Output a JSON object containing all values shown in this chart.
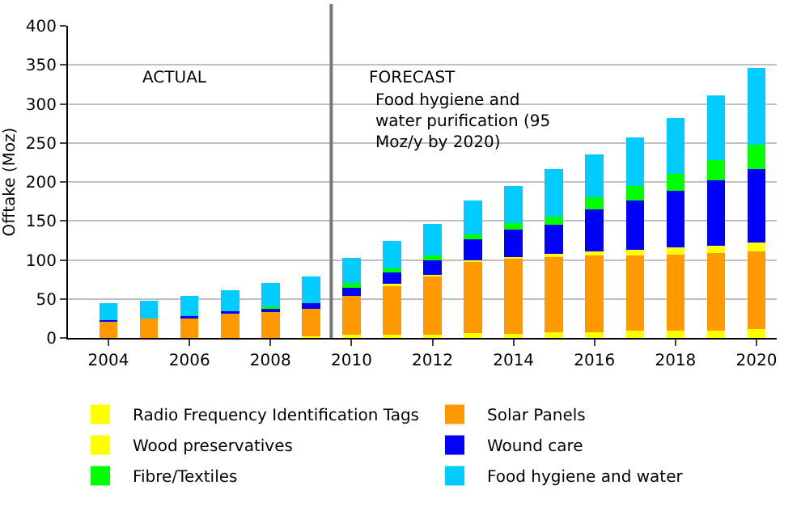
{
  "chart_data": {
    "type": "bar",
    "stacked": true,
    "ylabel": "Offtake (Moz)",
    "x": [
      2004,
      2005,
      2006,
      2007,
      2008,
      2009,
      2010,
      2011,
      2012,
      2013,
      2014,
      2015,
      2016,
      2017,
      2018,
      2019,
      2020
    ],
    "xlim": [
      2003,
      2020.5
    ],
    "xticks": [
      2004,
      2006,
      2008,
      2010,
      2012,
      2014,
      2016,
      2018,
      2020
    ],
    "ylim": [
      0,
      400
    ],
    "yticks": [
      0,
      50,
      100,
      150,
      200,
      250,
      300,
      350,
      400
    ],
    "grid": "y",
    "legend": "bottom",
    "series": [
      {
        "name": "Radio Frequency Identification Tags",
        "color": "#ffff00",
        "values": [
          0,
          0,
          0,
          0,
          0,
          2,
          4,
          4,
          4,
          6,
          5.5,
          7,
          7,
          9,
          9,
          9,
          11
        ]
      },
      {
        "name": "Solar Panels",
        "color": "#ff9900",
        "values": [
          21,
          25,
          26,
          32,
          33,
          35,
          50,
          64,
          76,
          93,
          97,
          98.5,
          98.5,
          96.5,
          98,
          100,
          100
        ]
      },
      {
        "name": "Wood preservatives",
        "color": "#ffff00",
        "values": [
          0,
          0,
          0,
          0,
          0,
          0,
          0,
          1,
          1,
          1,
          1.5,
          2,
          5.5,
          7.5,
          9.5,
          9.5,
          11
        ]
      },
      {
        "name": "Wound care",
        "color": "#0000ff",
        "values": [
          1.5,
          0,
          2,
          2,
          6,
          7.5,
          12,
          15,
          19,
          26,
          35,
          37.5,
          54,
          63,
          72.5,
          83.5,
          94.5
        ]
      },
      {
        "name": "Fibre/Textiles",
        "color": "#00ff00",
        "values": [
          0,
          0,
          0,
          0,
          1,
          0,
          4,
          5,
          5.5,
          7,
          8.5,
          10.5,
          15,
          19,
          21,
          26.5,
          31
        ]
      },
      {
        "name": "Food hygiene and water",
        "color": "#00ccff",
        "values": [
          22,
          23,
          26,
          27,
          30,
          34,
          33,
          35,
          40.5,
          43,
          47,
          61,
          55,
          62.5,
          71.5,
          82.5,
          98.5
        ]
      }
    ],
    "ref_lines": [
      {
        "axis": "x",
        "value": 2009.5,
        "color": "#777777"
      }
    ],
    "annotations": [
      "ACTUAL",
      "FORECAST",
      "Food hygiene and water purification (95 Moz/y by 2020)"
    ]
  }
}
